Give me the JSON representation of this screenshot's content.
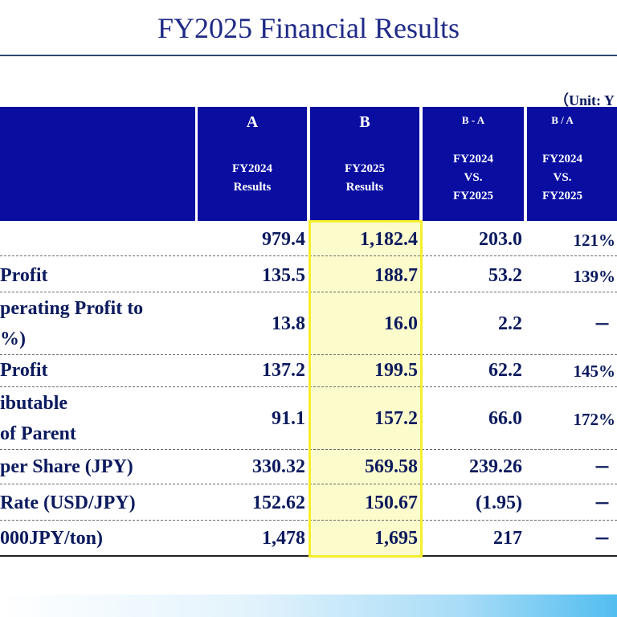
{
  "title": "FY2025 Financial Results",
  "unit": "（Unit: Y",
  "columns": [
    {
      "top": "A",
      "line1": "FY2024",
      "line2": "Results"
    },
    {
      "top": "B",
      "line1": "FY2025",
      "line2": "Results"
    },
    {
      "top": "B - A",
      "line1": "FY2024",
      "line2": "VS.",
      "line3": "FY2025"
    },
    {
      "top": "B / A",
      "line1": "FY2024",
      "line2": "VS.",
      "line3": "FY2025"
    }
  ],
  "rows": [
    {
      "label": "",
      "a": "979.4",
      "b": "1,182.4",
      "diff": "203.0",
      "ratio": "121%"
    },
    {
      "label": " Profit",
      "a": "135.5",
      "b": "188.7",
      "diff": "53.2",
      "ratio": "139%"
    },
    {
      "label1": "perating Profit to",
      "label2": "%)",
      "a": "13.8",
      "b": "16.0",
      "diff": "2.2",
      "ratio": "－"
    },
    {
      "label": "Profit",
      "a": "137.2",
      "b": "199.5",
      "diff": "62.2",
      "ratio": "145%"
    },
    {
      "label1": "ibutable",
      "label2": " of Parent",
      "a": "91.1",
      "b": "157.2",
      "diff": "66.0",
      "ratio": "172%"
    },
    {
      "label": "per Share (JPY)",
      "a": "330.32",
      "b": "569.58",
      "diff": "239.26",
      "ratio": "－"
    },
    {
      "label": "Rate (USD/JPY)",
      "a": "152.62",
      "b": "150.67",
      "diff": "(1.95)",
      "ratio": "－"
    },
    {
      "label": "000JPY/ton)",
      "a": "1,478",
      "b": "1,695",
      "diff": "217",
      "ratio": "－"
    }
  ],
  "colors": {
    "header_bg": "#0a0ea0",
    "highlight_fill": "#fcfbcc",
    "highlight_border": "#f5ee2c",
    "text": "#0b1a5e"
  }
}
